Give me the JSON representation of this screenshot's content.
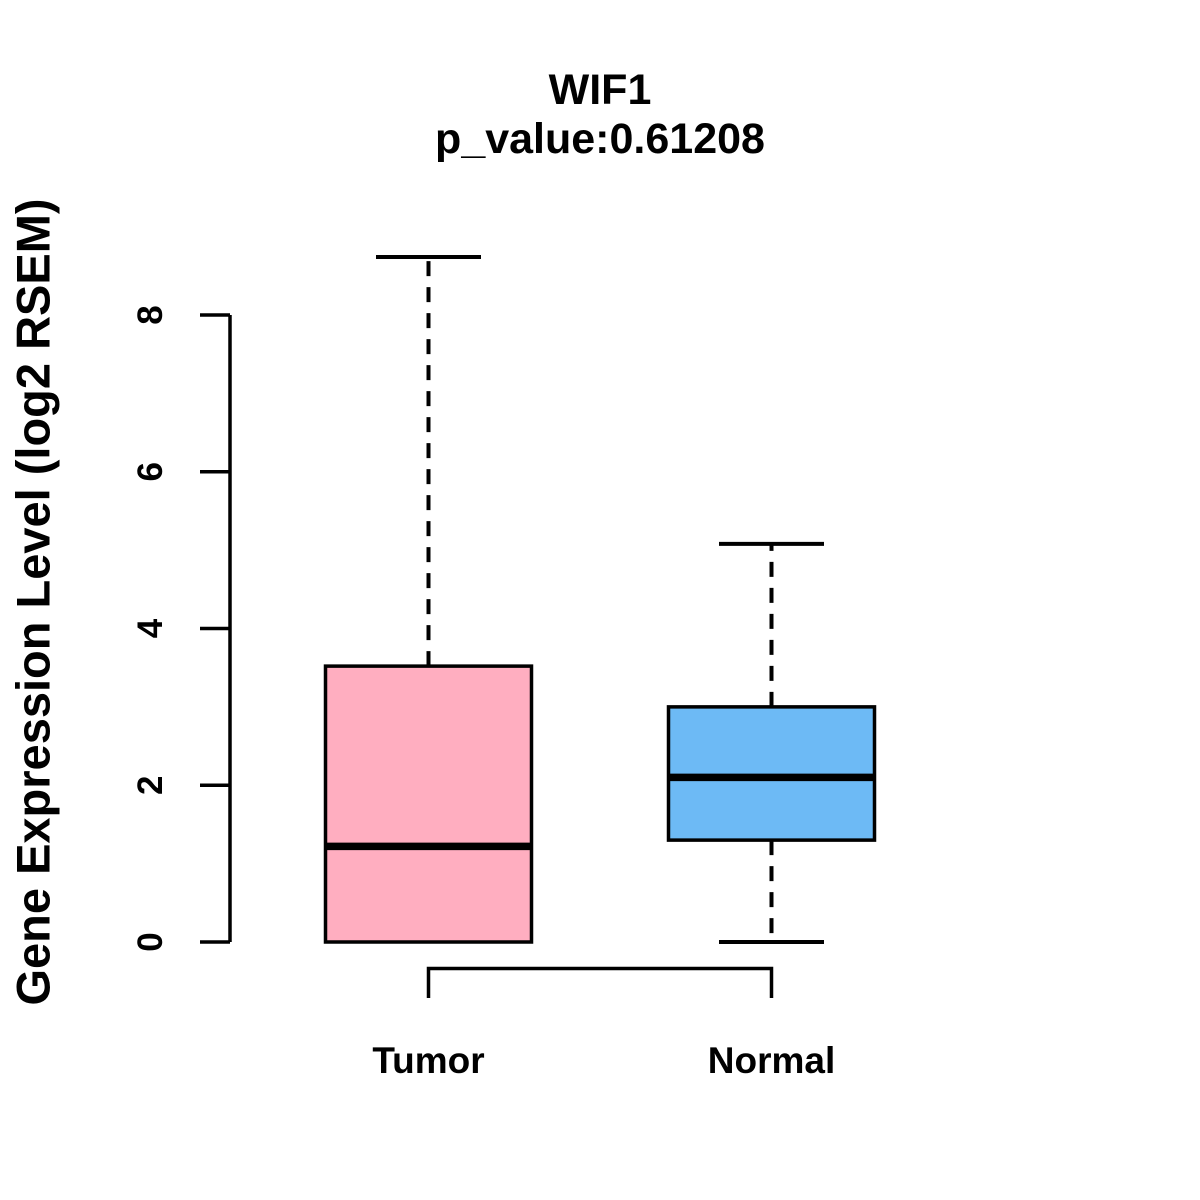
{
  "chart_data": {
    "type": "boxplot",
    "title": "WIF1",
    "subtitle": "p_value:0.61208",
    "ylabel": "Gene Expression Level (log2 RSEM)",
    "xlabel": "",
    "ylim": [
      0,
      8.8
    ],
    "yticks": [
      0,
      2,
      4,
      6,
      8
    ],
    "grid": false,
    "legend": "none",
    "categories": [
      "Tumor",
      "Normal"
    ],
    "series": [
      {
        "name": "Tumor",
        "fill_color": "#FFAEC0",
        "border_color": "#000000",
        "whisker_low": 0,
        "q1": 0,
        "median": 1.22,
        "q3": 3.52,
        "whisker_high": 8.74,
        "whisker_style": "dashed"
      },
      {
        "name": "Normal",
        "fill_color": "#6DBAF5",
        "border_color": "#000000",
        "whisker_low": 0,
        "q1": 1.3,
        "median": 2.1,
        "q3": 3.0,
        "whisker_high": 5.08,
        "whisker_style": "dashed"
      }
    ],
    "comparison_bracket": {
      "between": [
        "Tumor",
        "Normal"
      ],
      "position": "below-axis"
    }
  }
}
